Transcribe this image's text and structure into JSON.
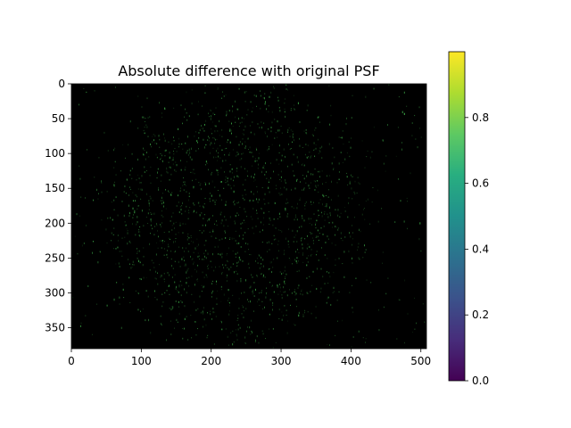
{
  "chart_data": {
    "type": "heatmap",
    "title": "Absolute difference with original PSF",
    "xlabel": "",
    "ylabel": "",
    "image_width": 508,
    "image_height": 380,
    "xlim": [
      0,
      508
    ],
    "ylim": [
      380,
      0
    ],
    "x_ticks": [
      0,
      100,
      200,
      300,
      400,
      500
    ],
    "y_ticks": [
      0,
      50,
      100,
      150,
      200,
      250,
      300,
      350
    ],
    "colormap": "viridis",
    "colorbar": {
      "range": [
        0.0,
        1.0
      ],
      "ticks": [
        "0.0",
        "0.2",
        "0.4",
        "0.6",
        "0.8"
      ]
    },
    "description_of_values": {
      "background_value": 0.0,
      "speckle_value_range": [
        0.3,
        0.9
      ],
      "dense_speckle_region": {
        "x": [
          100,
          360
        ],
        "y": [
          60,
          310
        ]
      }
    },
    "colors": {
      "background": "#000000",
      "speckle": "#3fb04a"
    }
  }
}
